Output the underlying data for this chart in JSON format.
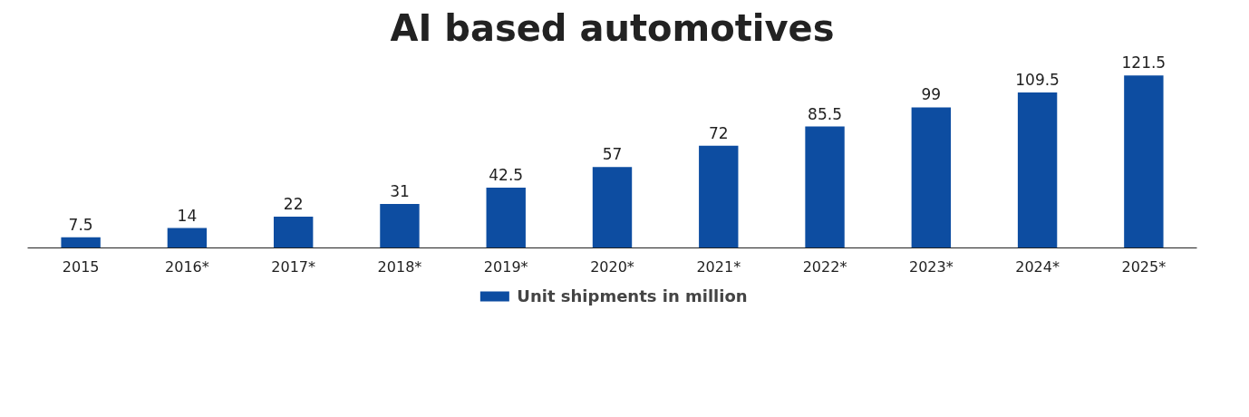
{
  "chart_data": {
    "type": "bar",
    "title": "AI based automotives",
    "categories": [
      "2015",
      "2016*",
      "2017*",
      "2018*",
      "2019*",
      "2020*",
      "2021*",
      "2022*",
      "2023*",
      "2024*",
      "2025*"
    ],
    "series": [
      {
        "name": "Unit shipments in million",
        "color": "#0d4da1",
        "values": [
          7.5,
          14,
          22,
          31,
          42.5,
          57,
          72,
          85.5,
          99,
          109.5,
          121.5
        ]
      }
    ],
    "data_labels": true,
    "legend": "bottom"
  }
}
